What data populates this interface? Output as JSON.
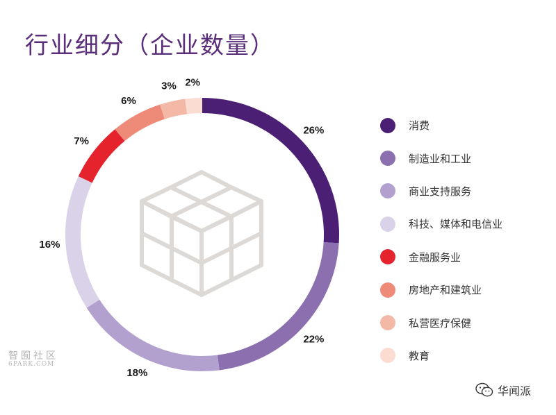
{
  "title": "行业细分（企业数量）",
  "chart_data": {
    "type": "pie",
    "title": "行业细分（企业数量）",
    "series": [
      {
        "name": "消费",
        "value": 26,
        "label": "26%",
        "color": "#4b1f73"
      },
      {
        "name": "制造业和工业",
        "value": 22,
        "label": "22%",
        "color": "#8b6fae"
      },
      {
        "name": "商业支持服务",
        "value": 18,
        "label": "18%",
        "color": "#b2a0cf"
      },
      {
        "name": "科技、媒体和电信业",
        "value": 16,
        "label": "16%",
        "color": "#d9d2e8"
      },
      {
        "name": "金融服务业",
        "value": 7,
        "label": "7%",
        "color": "#e5232d"
      },
      {
        "name": "房地产和建筑业",
        "value": 6,
        "label": "6%",
        "color": "#ee8a78"
      },
      {
        "name": "私营医疗保健",
        "value": 3,
        "label": "3%",
        "color": "#f4b8a6"
      },
      {
        "name": "教育",
        "value": 2,
        "label": "2%",
        "color": "#fbdcd2"
      }
    ]
  },
  "watermark": {
    "cn": "智囿社区",
    "en": "6PARK.COM"
  },
  "brand": {
    "name": "华闻派",
    "icon": "wechat-icon"
  }
}
